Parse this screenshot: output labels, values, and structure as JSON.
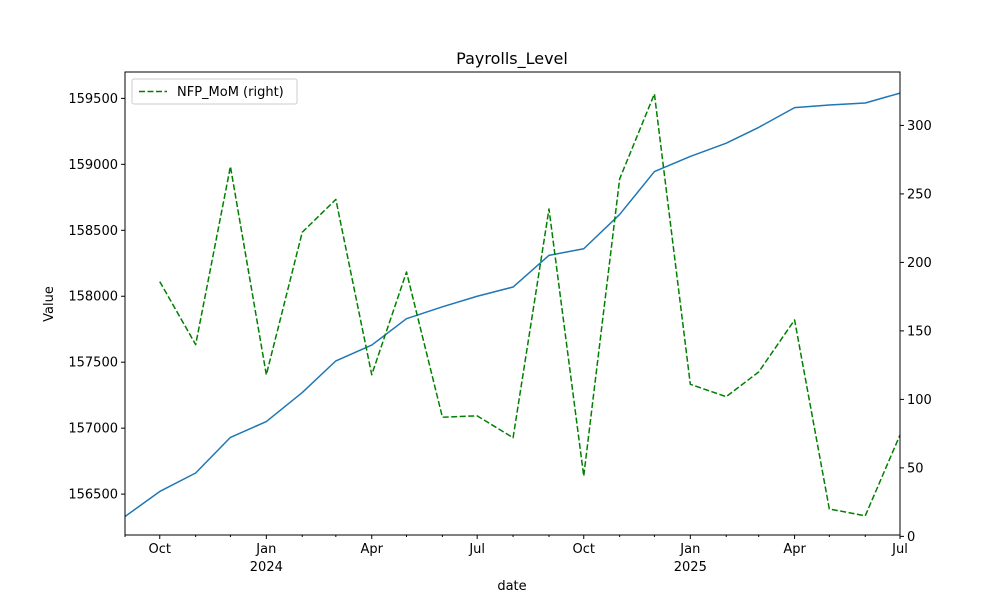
{
  "chart_data": {
    "type": "line",
    "title": "Payrolls_Level",
    "xlabel": "date",
    "ylabel": "Value",
    "x": [
      "2023-09-01",
      "2023-10-01",
      "2023-11-01",
      "2023-12-01",
      "2024-01-01",
      "2024-02-01",
      "2024-03-01",
      "2024-04-01",
      "2024-05-01",
      "2024-06-01",
      "2024-07-01",
      "2024-08-01",
      "2024-09-01",
      "2024-10-01",
      "2024-11-01",
      "2024-12-01",
      "2025-01-01",
      "2025-02-01",
      "2025-03-01",
      "2025-04-01",
      "2025-05-01",
      "2025-06-01",
      "2025-07-01"
    ],
    "xlim": [
      "2023-09-01",
      "2025-07-01"
    ],
    "x_ticks": [
      {
        "date": "2023-10-01",
        "label": "Oct",
        "year": ""
      },
      {
        "date": "2024-01-01",
        "label": "Jan",
        "year": "2024"
      },
      {
        "date": "2024-04-01",
        "label": "Apr",
        "year": ""
      },
      {
        "date": "2024-07-01",
        "label": "Jul",
        "year": ""
      },
      {
        "date": "2024-10-01",
        "label": "Oct",
        "year": ""
      },
      {
        "date": "2025-01-01",
        "label": "Jan",
        "year": "2025"
      },
      {
        "date": "2025-04-01",
        "label": "Apr",
        "year": ""
      },
      {
        "date": "2025-07-01",
        "label": "Jul",
        "year": ""
      }
    ],
    "ylim": [
      156190,
      159700
    ],
    "y_ticks": [
      156500,
      157000,
      157500,
      158000,
      158500,
      159000,
      159500
    ],
    "y2lim": [
      1,
      339
    ],
    "y2_ticks": [
      0,
      50,
      100,
      150,
      200,
      250,
      300
    ],
    "grid": false,
    "legend_position": "upper-left",
    "series": [
      {
        "axis": "left",
        "color": "#1f77b4",
        "style": "solid",
        "values": [
          156330,
          156520,
          156660,
          156930,
          157050,
          157270,
          157510,
          157630,
          157830,
          157920,
          158000,
          158070,
          158310,
          158360,
          158620,
          158945,
          159060,
          159160,
          159280,
          159430,
          159450,
          159465,
          159540
        ]
      },
      {
        "axis": "right",
        "name": "NFP_MoM (right)",
        "color": "#008000",
        "style": "dashed",
        "values": [
          null,
          186,
          140,
          270,
          118,
          222,
          246,
          118,
          193,
          87,
          88,
          72,
          239,
          44,
          261,
          323,
          111,
          102,
          120,
          158,
          20,
          15,
          74
        ]
      }
    ]
  }
}
